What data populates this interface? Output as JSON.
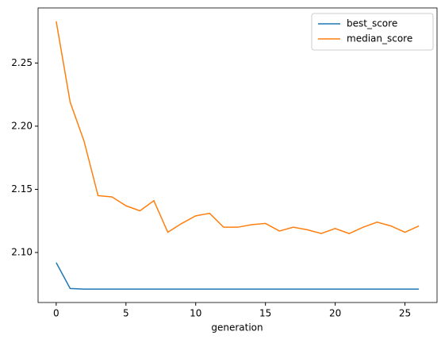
{
  "chart_data": {
    "type": "line",
    "xlabel": "generation",
    "x": [
      0,
      1,
      2,
      3,
      4,
      5,
      6,
      7,
      8,
      9,
      10,
      11,
      12,
      13,
      14,
      15,
      16,
      17,
      18,
      19,
      20,
      21,
      22,
      23,
      24,
      25,
      26
    ],
    "series": [
      {
        "name": "best_score",
        "color": "#1f77b4",
        "values": [
          2.092,
          2.0715,
          2.071,
          2.071,
          2.071,
          2.071,
          2.071,
          2.071,
          2.071,
          2.071,
          2.071,
          2.071,
          2.071,
          2.071,
          2.071,
          2.071,
          2.071,
          2.071,
          2.071,
          2.071,
          2.071,
          2.071,
          2.071,
          2.071,
          2.071,
          2.071,
          2.071
        ]
      },
      {
        "name": "median_score",
        "color": "#ff7f0e",
        "values": [
          2.283,
          2.219,
          2.188,
          2.145,
          2.144,
          2.137,
          2.133,
          2.141,
          2.116,
          2.123,
          2.129,
          2.131,
          2.12,
          2.12,
          2.122,
          2.123,
          2.117,
          2.12,
          2.118,
          2.115,
          2.119,
          2.115,
          2.12,
          2.124,
          2.121,
          2.116,
          2.121
        ]
      }
    ],
    "xlim": [
      -1.3,
      27.3
    ],
    "ylim": [
      2.0604,
      2.2936
    ],
    "xticks": [
      0,
      5,
      10,
      15,
      20,
      25
    ],
    "yticks": [
      {
        "value": 2.1,
        "label": "2.10"
      },
      {
        "value": 2.15,
        "label": "2.15"
      },
      {
        "value": 2.2,
        "label": "2.20"
      },
      {
        "value": 2.25,
        "label": "2.25"
      }
    ],
    "legend": "upper right"
  }
}
